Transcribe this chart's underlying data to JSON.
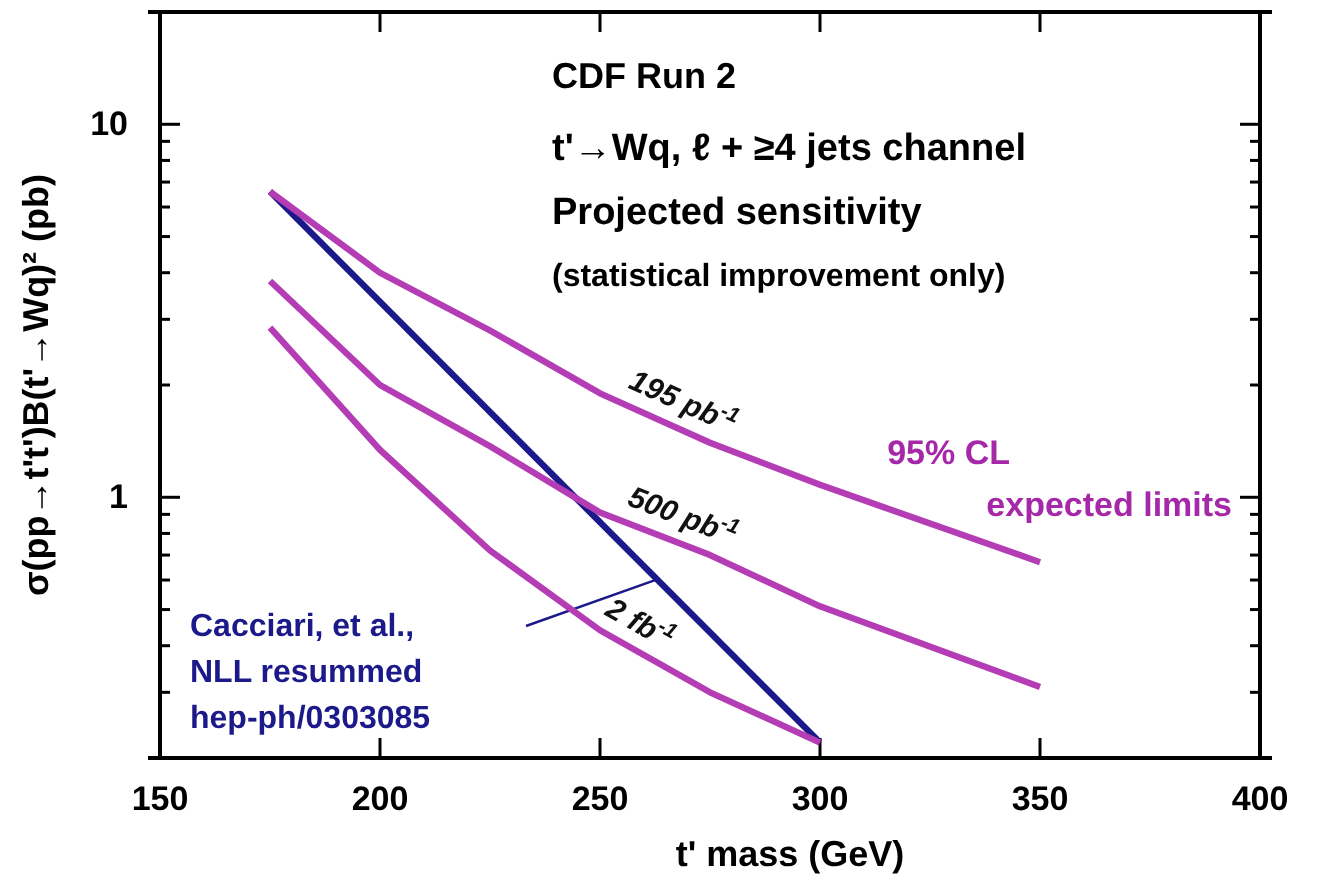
{
  "chart_data": {
    "type": "line",
    "title": "CDF Run 2",
    "subtitle": "t'→Wq, ℓ + ≥4 jets channel",
    "xlabel": "t' mass  (GeV)",
    "ylabel": "σ(pp→t't')B(t'→Wq)²  (pb)",
    "annotations": [
      "Projected sensitivity",
      "(statistical improvement only)",
      "95% CL expected limits"
    ],
    "x": [
      175,
      200,
      225,
      250,
      275,
      300,
      350
    ],
    "series": [
      {
        "name": "Cacciari, et al.,\nNLL resummed\nhep-ph/0303085",
        "color": "#1c1a8a",
        "x": [
          175,
          300
        ],
        "values": [
          6.6,
          0.22
        ]
      },
      {
        "name": "195 pb$^{-1}$",
        "color": "#b43cb4",
        "values": [
          6.6,
          4.0,
          2.8,
          1.9,
          1.4,
          1.08,
          0.67
        ]
      },
      {
        "name": "500 pb$^{-1}$",
        "color": "#b43cb4",
        "values": [
          3.8,
          2.0,
          1.37,
          0.91,
          0.7,
          0.51,
          0.31
        ]
      },
      {
        "name": "2 fb$^{-1}$",
        "color": "#b43cb4",
        "values": [
          2.85,
          1.34,
          0.72,
          0.44,
          0.3,
          0.22,
          null
        ]
      }
    ],
    "xlim": [
      150,
      400
    ],
    "xticks": [
      150,
      200,
      250,
      300,
      350,
      400
    ],
    "ylim": [
      0.2,
      20
    ],
    "log": true,
    "yticks": [
      {
        "value": 0.2,
        "label": null
      },
      {
        "value": 0.3,
        "label": null
      },
      {
        "value": 0.4,
        "label": null
      },
      {
        "value": 0.5,
        "label": null
      },
      {
        "value": 0.6,
        "label": null
      },
      {
        "value": 0.7,
        "label": null
      },
      {
        "value": 0.8,
        "label": null
      },
      {
        "value": 0.9,
        "label": null
      },
      1,
      {
        "value": 2,
        "label": null
      },
      {
        "value": 3,
        "label": null
      },
      {
        "value": 4,
        "label": null
      },
      {
        "value": 5,
        "label": null
      },
      {
        "value": 6,
        "label": null
      },
      {
        "value": 7,
        "label": null
      },
      {
        "value": 8,
        "label": null
      },
      {
        "value": 9,
        "label": null
      },
      10,
      {
        "value": 20,
        "label": null
      }
    ],
    "grid": false,
    "marker": "none",
    "line_style": "solid"
  }
}
